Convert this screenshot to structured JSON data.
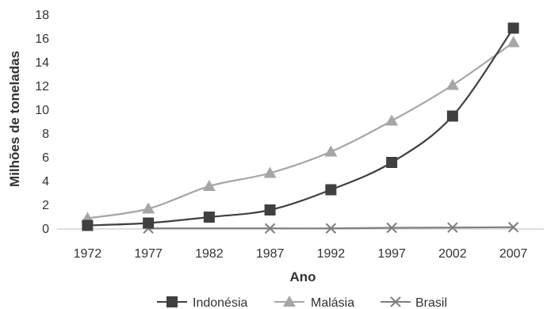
{
  "chart_data": {
    "type": "line",
    "xlabel": "Ano",
    "ylabel": "Milhões de toneladas",
    "categories": [
      "1972",
      "1977",
      "1982",
      "1987",
      "1992",
      "1997",
      "2002",
      "2007"
    ],
    "ylim": [
      0,
      18
    ],
    "yticks": [
      0,
      2,
      4,
      6,
      8,
      10,
      12,
      14,
      16,
      18
    ],
    "grid": false,
    "legend_position": "bottom",
    "series": [
      {
        "name": "Indonésia",
        "marker": "square",
        "color": "#404040",
        "values": [
          0.3,
          0.5,
          1.0,
          1.6,
          3.3,
          5.6,
          9.5,
          16.9
        ]
      },
      {
        "name": "Malásia",
        "marker": "triangle",
        "color": "#a6a6a6",
        "values": [
          0.9,
          1.7,
          3.6,
          4.7,
          6.5,
          9.1,
          12.1,
          15.7
        ]
      },
      {
        "name": "Brasil",
        "marker": "x",
        "color": "#7f7f7f",
        "values": [
          null,
          0.05,
          null,
          0.05,
          0.05,
          0.1,
          0.12,
          0.15
        ]
      }
    ]
  }
}
